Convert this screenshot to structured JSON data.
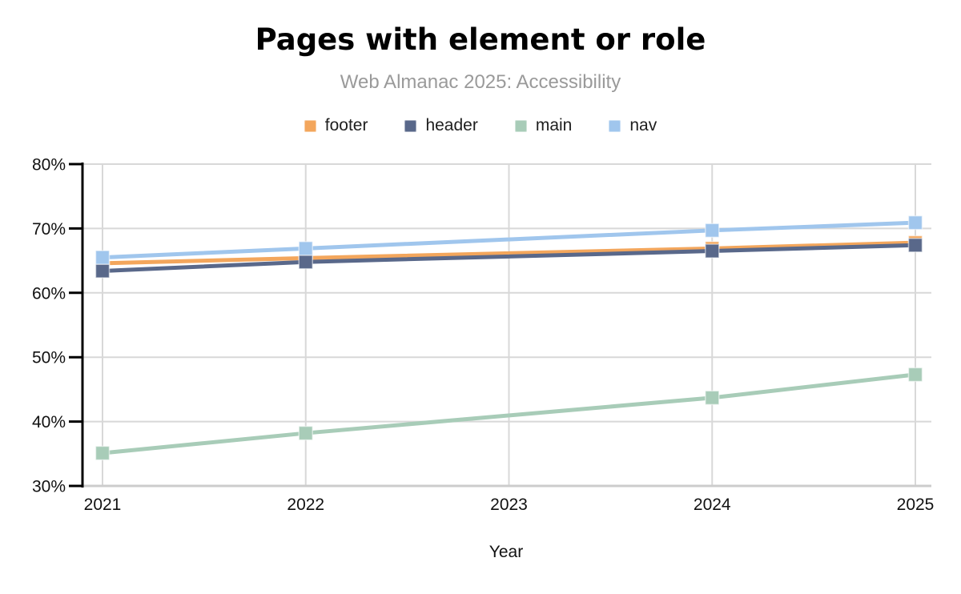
{
  "colors": {
    "background": "#ffffff",
    "grid": "#d8d8d8",
    "x_axis_line": "#cccccc",
    "y_axis_line": "#000000",
    "title_text": "#000000",
    "subtitle_text": "#9a9a9a",
    "tick_text": "#111111",
    "legend_text": "#1e1e1e"
  },
  "chart_data": {
    "type": "line",
    "title": "Pages with element or role",
    "subtitle": "Web Almanac 2025: Accessibility",
    "xlabel": "Year",
    "ylabel": "",
    "x": [
      "2021",
      "2022",
      "2023",
      "2024",
      "2025"
    ],
    "series": [
      {
        "name": "footer",
        "color": "#f3a65c",
        "values": [
          64.6,
          65.4,
          null,
          66.9,
          67.8
        ]
      },
      {
        "name": "header",
        "color": "#59688a",
        "values": [
          63.4,
          64.8,
          null,
          66.5,
          67.4
        ]
      },
      {
        "name": "main",
        "color": "#a8ccb8",
        "values": [
          35.1,
          38.2,
          null,
          43.7,
          47.3
        ]
      },
      {
        "name": "nav",
        "color": "#a0c6ed",
        "values": [
          65.5,
          66.9,
          null,
          69.7,
          70.9
        ]
      }
    ],
    "ylim": [
      30,
      80
    ],
    "ytick_step": 10,
    "ytick_format": "percent",
    "y_tick_labels": [
      "80%",
      "70%",
      "60%",
      "50%",
      "40%",
      "30%"
    ],
    "x_tick_labels": [
      "2021",
      "2022",
      "2023",
      "2024",
      "2025"
    ],
    "grid": true,
    "legend_position": "top",
    "marker": "square",
    "note_missing": "no data points plotted for 2023; lines connect 2022 to 2024"
  }
}
